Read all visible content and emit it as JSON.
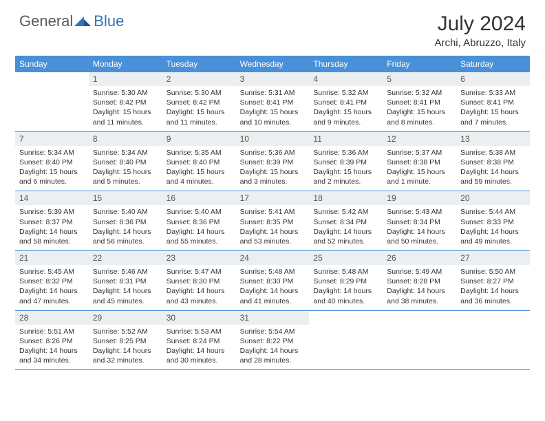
{
  "logo": {
    "general": "General",
    "blue": "Blue"
  },
  "title": "July 2024",
  "location": "Archi, Abruzzo, Italy",
  "colors": {
    "header_bg": "#4a90d9",
    "header_text": "#ffffff",
    "daynum_bg": "#eceff1",
    "row_border": "#4a90d9",
    "logo_gray": "#58595b",
    "logo_blue": "#2f75b5"
  },
  "day_names": [
    "Sunday",
    "Monday",
    "Tuesday",
    "Wednesday",
    "Thursday",
    "Friday",
    "Saturday"
  ],
  "weeks": [
    [
      null,
      {
        "n": "1",
        "sr": "5:30 AM",
        "ss": "8:42 PM",
        "dl": "15 hours and 11 minutes."
      },
      {
        "n": "2",
        "sr": "5:30 AM",
        "ss": "8:42 PM",
        "dl": "15 hours and 11 minutes."
      },
      {
        "n": "3",
        "sr": "5:31 AM",
        "ss": "8:41 PM",
        "dl": "15 hours and 10 minutes."
      },
      {
        "n": "4",
        "sr": "5:32 AM",
        "ss": "8:41 PM",
        "dl": "15 hours and 9 minutes."
      },
      {
        "n": "5",
        "sr": "5:32 AM",
        "ss": "8:41 PM",
        "dl": "15 hours and 8 minutes."
      },
      {
        "n": "6",
        "sr": "5:33 AM",
        "ss": "8:41 PM",
        "dl": "15 hours and 7 minutes."
      }
    ],
    [
      {
        "n": "7",
        "sr": "5:34 AM",
        "ss": "8:40 PM",
        "dl": "15 hours and 6 minutes."
      },
      {
        "n": "8",
        "sr": "5:34 AM",
        "ss": "8:40 PM",
        "dl": "15 hours and 5 minutes."
      },
      {
        "n": "9",
        "sr": "5:35 AM",
        "ss": "8:40 PM",
        "dl": "15 hours and 4 minutes."
      },
      {
        "n": "10",
        "sr": "5:36 AM",
        "ss": "8:39 PM",
        "dl": "15 hours and 3 minutes."
      },
      {
        "n": "11",
        "sr": "5:36 AM",
        "ss": "8:39 PM",
        "dl": "15 hours and 2 minutes."
      },
      {
        "n": "12",
        "sr": "5:37 AM",
        "ss": "8:38 PM",
        "dl": "15 hours and 1 minute."
      },
      {
        "n": "13",
        "sr": "5:38 AM",
        "ss": "8:38 PM",
        "dl": "14 hours and 59 minutes."
      }
    ],
    [
      {
        "n": "14",
        "sr": "5:39 AM",
        "ss": "8:37 PM",
        "dl": "14 hours and 58 minutes."
      },
      {
        "n": "15",
        "sr": "5:40 AM",
        "ss": "8:36 PM",
        "dl": "14 hours and 56 minutes."
      },
      {
        "n": "16",
        "sr": "5:40 AM",
        "ss": "8:36 PM",
        "dl": "14 hours and 55 minutes."
      },
      {
        "n": "17",
        "sr": "5:41 AM",
        "ss": "8:35 PM",
        "dl": "14 hours and 53 minutes."
      },
      {
        "n": "18",
        "sr": "5:42 AM",
        "ss": "8:34 PM",
        "dl": "14 hours and 52 minutes."
      },
      {
        "n": "19",
        "sr": "5:43 AM",
        "ss": "8:34 PM",
        "dl": "14 hours and 50 minutes."
      },
      {
        "n": "20",
        "sr": "5:44 AM",
        "ss": "8:33 PM",
        "dl": "14 hours and 49 minutes."
      }
    ],
    [
      {
        "n": "21",
        "sr": "5:45 AM",
        "ss": "8:32 PM",
        "dl": "14 hours and 47 minutes."
      },
      {
        "n": "22",
        "sr": "5:46 AM",
        "ss": "8:31 PM",
        "dl": "14 hours and 45 minutes."
      },
      {
        "n": "23",
        "sr": "5:47 AM",
        "ss": "8:30 PM",
        "dl": "14 hours and 43 minutes."
      },
      {
        "n": "24",
        "sr": "5:48 AM",
        "ss": "8:30 PM",
        "dl": "14 hours and 41 minutes."
      },
      {
        "n": "25",
        "sr": "5:48 AM",
        "ss": "8:29 PM",
        "dl": "14 hours and 40 minutes."
      },
      {
        "n": "26",
        "sr": "5:49 AM",
        "ss": "8:28 PM",
        "dl": "14 hours and 38 minutes."
      },
      {
        "n": "27",
        "sr": "5:50 AM",
        "ss": "8:27 PM",
        "dl": "14 hours and 36 minutes."
      }
    ],
    [
      {
        "n": "28",
        "sr": "5:51 AM",
        "ss": "8:26 PM",
        "dl": "14 hours and 34 minutes."
      },
      {
        "n": "29",
        "sr": "5:52 AM",
        "ss": "8:25 PM",
        "dl": "14 hours and 32 minutes."
      },
      {
        "n": "30",
        "sr": "5:53 AM",
        "ss": "8:24 PM",
        "dl": "14 hours and 30 minutes."
      },
      {
        "n": "31",
        "sr": "5:54 AM",
        "ss": "8:22 PM",
        "dl": "14 hours and 28 minutes."
      },
      null,
      null,
      null
    ]
  ],
  "labels": {
    "sunrise": "Sunrise: ",
    "sunset": "Sunset: ",
    "daylight": "Daylight: "
  }
}
